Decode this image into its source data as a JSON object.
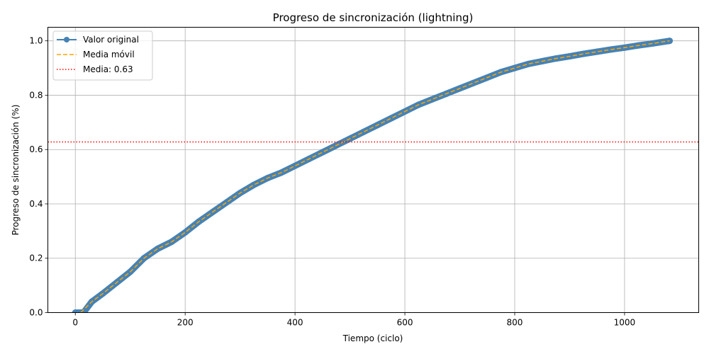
{
  "chart_data": {
    "type": "line",
    "title": "Progreso de sincronización (lightning)",
    "xlabel": "Tiempo (ciclo)",
    "ylabel": "Progreso de sincronización (%)",
    "xlim": [
      -50,
      1135
    ],
    "ylim": [
      0,
      1.05
    ],
    "xticks": [
      0,
      200,
      400,
      600,
      800,
      1000
    ],
    "yticks": [
      0.0,
      0.2,
      0.4,
      0.6,
      0.8,
      1.0
    ],
    "xtick_labels": [
      "0",
      "200",
      "400",
      "600",
      "800",
      "1000"
    ],
    "ytick_labels": [
      "0.0",
      "0.2",
      "0.4",
      "0.6",
      "0.8",
      "1.0"
    ],
    "grid": true,
    "legend_position": "top-left",
    "mean_value": 0.63,
    "series": [
      {
        "name": "Valor original",
        "style": "solid-marker",
        "color": "#4682b4",
        "points": [
          [
            0,
            0.0
          ],
          [
            15,
            0.0
          ],
          [
            30,
            0.04
          ],
          [
            50,
            0.07
          ],
          [
            75,
            0.11
          ],
          [
            100,
            0.15
          ],
          [
            125,
            0.2
          ],
          [
            150,
            0.235
          ],
          [
            175,
            0.26
          ],
          [
            200,
            0.295
          ],
          [
            225,
            0.335
          ],
          [
            250,
            0.37
          ],
          [
            275,
            0.405
          ],
          [
            300,
            0.44
          ],
          [
            325,
            0.47
          ],
          [
            350,
            0.495
          ],
          [
            375,
            0.515
          ],
          [
            400,
            0.54
          ],
          [
            425,
            0.565
          ],
          [
            450,
            0.59
          ],
          [
            475,
            0.615
          ],
          [
            500,
            0.64
          ],
          [
            525,
            0.665
          ],
          [
            550,
            0.69
          ],
          [
            575,
            0.715
          ],
          [
            600,
            0.74
          ],
          [
            625,
            0.765
          ],
          [
            650,
            0.785
          ],
          [
            675,
            0.805
          ],
          [
            700,
            0.825
          ],
          [
            725,
            0.845
          ],
          [
            750,
            0.865
          ],
          [
            775,
            0.885
          ],
          [
            800,
            0.9
          ],
          [
            825,
            0.915
          ],
          [
            850,
            0.925
          ],
          [
            875,
            0.935
          ],
          [
            900,
            0.943
          ],
          [
            925,
            0.952
          ],
          [
            950,
            0.96
          ],
          [
            975,
            0.968
          ],
          [
            1000,
            0.975
          ],
          [
            1025,
            0.983
          ],
          [
            1050,
            0.99
          ],
          [
            1082,
            1.0
          ]
        ]
      },
      {
        "name": "Media móvil",
        "style": "dashed",
        "color": "#ffa500",
        "points": [
          [
            10,
            0.0
          ],
          [
            30,
            0.04
          ],
          [
            50,
            0.07
          ],
          [
            75,
            0.11
          ],
          [
            100,
            0.15
          ],
          [
            125,
            0.2
          ],
          [
            150,
            0.235
          ],
          [
            175,
            0.26
          ],
          [
            200,
            0.295
          ],
          [
            225,
            0.335
          ],
          [
            250,
            0.37
          ],
          [
            275,
            0.405
          ],
          [
            300,
            0.44
          ],
          [
            325,
            0.47
          ],
          [
            350,
            0.495
          ],
          [
            375,
            0.515
          ],
          [
            400,
            0.54
          ],
          [
            425,
            0.565
          ],
          [
            450,
            0.59
          ],
          [
            475,
            0.615
          ],
          [
            500,
            0.64
          ],
          [
            525,
            0.665
          ],
          [
            550,
            0.69
          ],
          [
            575,
            0.715
          ],
          [
            600,
            0.74
          ],
          [
            625,
            0.765
          ],
          [
            650,
            0.785
          ],
          [
            675,
            0.805
          ],
          [
            700,
            0.825
          ],
          [
            725,
            0.845
          ],
          [
            750,
            0.865
          ],
          [
            775,
            0.885
          ],
          [
            800,
            0.9
          ],
          [
            825,
            0.915
          ],
          [
            850,
            0.925
          ],
          [
            875,
            0.935
          ],
          [
            900,
            0.943
          ],
          [
            925,
            0.952
          ],
          [
            950,
            0.96
          ],
          [
            975,
            0.968
          ],
          [
            1000,
            0.975
          ],
          [
            1025,
            0.983
          ],
          [
            1050,
            0.99
          ],
          [
            1082,
            1.0
          ]
        ]
      },
      {
        "name": "Media: 0.63",
        "style": "dotted-hline",
        "color": "#ff0000",
        "y": 0.628
      }
    ]
  }
}
